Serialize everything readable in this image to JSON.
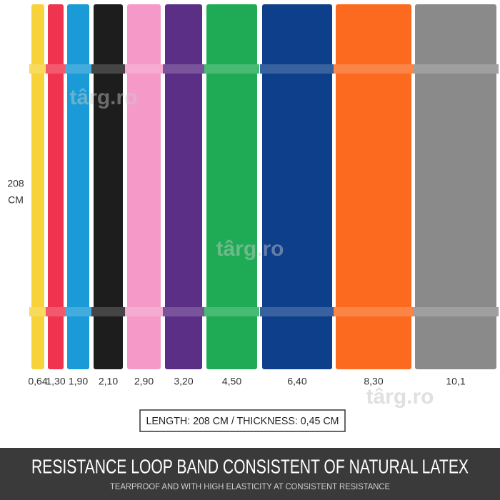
{
  "side_label": [
    "208",
    "CM"
  ],
  "bands": [
    {
      "label": "0,64",
      "color": "#f7d23a"
    },
    {
      "label": "1,30",
      "color": "#f0344f"
    },
    {
      "label": "1,90",
      "color": "#1a9ad6"
    },
    {
      "label": "2,10",
      "color": "#1d1d1d"
    },
    {
      "label": "2,90",
      "color": "#f59ac8"
    },
    {
      "label": "3,20",
      "color": "#5c2f86"
    },
    {
      "label": "4,50",
      "color": "#1fab55"
    },
    {
      "label": "6,40",
      "color": "#0d3f8a"
    },
    {
      "label": "8,30",
      "color": "#fb6a1f"
    },
    {
      "label": "10,1",
      "color": "#8a8a8a"
    }
  ],
  "spec": "LENGTH: 208 CM / THICKNESS: 0,45 CM",
  "watermark": "târg.ro",
  "footer": {
    "title": "RESISTANCE LOOP BAND CONSISTENT OF NATURAL LATEX",
    "subtitle": "TEARPROOF AND WITH HIGH ELASTICITY AT CONSISTENT RESISTANCE"
  }
}
